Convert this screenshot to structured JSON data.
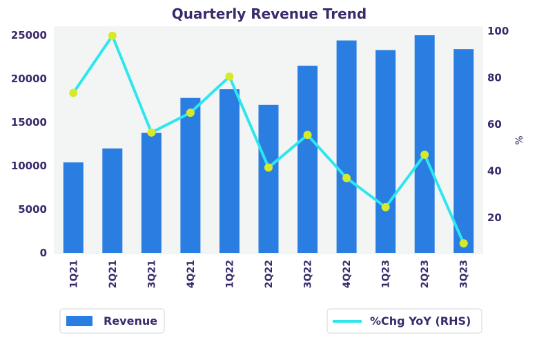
{
  "chart_data": {
    "type": "bar",
    "title": "Quarterly Revenue Trend",
    "categories": [
      "1Q21",
      "2Q21",
      "3Q21",
      "4Q21",
      "1Q22",
      "2Q22",
      "3Q22",
      "4Q22",
      "1Q23",
      "2Q23",
      "3Q23"
    ],
    "series": [
      {
        "name": "Revenue",
        "type": "bar",
        "axis": "left",
        "color": "#2a7de1",
        "values": [
          10400,
          12000,
          13800,
          17800,
          18800,
          17000,
          21500,
          24400,
          23300,
          25000,
          23400
        ]
      },
      {
        "name": "%Chg YoY (RHS)",
        "type": "line",
        "axis": "right",
        "color": "#2ee6ee",
        "marker_color": "#d6ea2a",
        "values": [
          73.5,
          98,
          56.5,
          65,
          80.5,
          41.5,
          55.5,
          37,
          24.5,
          47,
          9
        ]
      }
    ],
    "ylim_left": [
      0,
      25000
    ],
    "yticks_left": [
      0,
      5000,
      10000,
      15000,
      20000,
      25000
    ],
    "ylim_right": [
      5,
      100
    ],
    "yticks_right": [
      20,
      40,
      60,
      80,
      100
    ],
    "ylabel_right": "%",
    "grid": false,
    "plot_background": "#f3f5f4",
    "legend_placement": "bottom"
  }
}
